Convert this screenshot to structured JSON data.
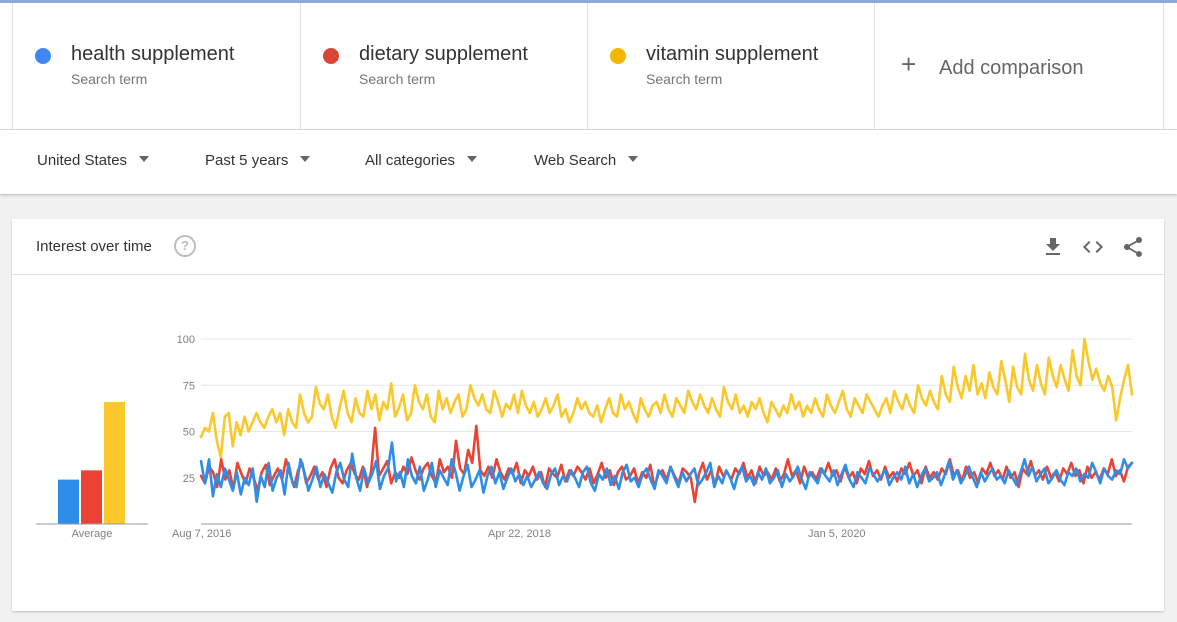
{
  "terms": [
    {
      "name": "health supplement",
      "sub": "Search term",
      "color": "#4285f4"
    },
    {
      "name": "dietary supplement",
      "sub": "Search term",
      "color": "#db4437"
    },
    {
      "name": "vitamin supplement",
      "sub": "Search term",
      "color": "#f4b400"
    }
  ],
  "add_comparison": {
    "label": "Add comparison"
  },
  "filters": {
    "region": "United States",
    "time": "Past 5 years",
    "category": "All categories",
    "search_type": "Web Search"
  },
  "card": {
    "title": "Interest over time",
    "help_icon": "question-circle-icon"
  },
  "header_icons": [
    "download-icon",
    "embed-code-icon",
    "share-icon"
  ],
  "chart_data": {
    "type": "line",
    "x_tick_labels": [
      "Aug 7, 2016",
      "Apr 22, 2018",
      "Jan 5, 2020"
    ],
    "y_ticks": [
      25,
      50,
      75,
      100
    ],
    "ylim": [
      0,
      100
    ],
    "grid": true,
    "average_label": "Average",
    "averages": [
      {
        "name": "health supplement",
        "value": 24,
        "color": "#2d8ee8"
      },
      {
        "name": "dietary supplement",
        "value": 29,
        "color": "#ea4335"
      },
      {
        "name": "vitamin supplement",
        "value": 66,
        "color": "#fbc82b"
      }
    ],
    "series": [
      {
        "name": "health supplement",
        "color": "#2d8ee8",
        "values": [
          34,
          22,
          35,
          15,
          27,
          20,
          30,
          24,
          18,
          28,
          16,
          25,
          21,
          30,
          12,
          26,
          20,
          33,
          18,
          25,
          29,
          16,
          33,
          22,
          20,
          35,
          28,
          18,
          24,
          31,
          20,
          27,
          22,
          17,
          28,
          33,
          24,
          20,
          38,
          25,
          18,
          30,
          22,
          27,
          34,
          19,
          26,
          30,
          44,
          23,
          28,
          20,
          35,
          26,
          22,
          31,
          18,
          24,
          33,
          20,
          29,
          25,
          21,
          35,
          28,
          18,
          26,
          32,
          20,
          24,
          29,
          17,
          26,
          31,
          22,
          28,
          19,
          25,
          30,
          23,
          27,
          21,
          26,
          20,
          24,
          28,
          22,
          19,
          27,
          30,
          21,
          26,
          23,
          29,
          25,
          20,
          28,
          31,
          22,
          18,
          27,
          24,
          30,
          21,
          26,
          19,
          28,
          32,
          23,
          25,
          20,
          27,
          30,
          24,
          19,
          29,
          26,
          22,
          31,
          25,
          20,
          28,
          23,
          27,
          30,
          21,
          24,
          28,
          33,
          20,
          26,
          22,
          29,
          25,
          19,
          27,
          31,
          23,
          26,
          21,
          28,
          24,
          30,
          22,
          25,
          29,
          20,
          27,
          23,
          26,
          31,
          24,
          19,
          28,
          25,
          22,
          30,
          26,
          23,
          29,
          21,
          27,
          32,
          24,
          20,
          28,
          25,
          22,
          30,
          27,
          23,
          26,
          29,
          21,
          25,
          28,
          24,
          31,
          22,
          27,
          20,
          26,
          30,
          23,
          25,
          28,
          21,
          27,
          34,
          24,
          29,
          22,
          26,
          31,
          25,
          20,
          28,
          23,
          27,
          30,
          24,
          26,
          22,
          29,
          25,
          21,
          28,
          35,
          26,
          31,
          23,
          27,
          30,
          22,
          25,
          29,
          24,
          21,
          28,
          26,
          30,
          23,
          27,
          25,
          33,
          28,
          22,
          30,
          26,
          24,
          29,
          27,
          35,
          30,
          33
        ]
      },
      {
        "name": "dietary supplement",
        "color": "#ea4335",
        "values": [
          26,
          22,
          31,
          28,
          20,
          35,
          24,
          29,
          19,
          33,
          27,
          22,
          30,
          25,
          18,
          28,
          32,
          21,
          26,
          30,
          24,
          35,
          27,
          20,
          29,
          33,
          22,
          26,
          31,
          24,
          28,
          20,
          30,
          35,
          25,
          22,
          29,
          33,
          27,
          24,
          31,
          20,
          28,
          52,
          26,
          30,
          34,
          22,
          28,
          25,
          31,
          27,
          36,
          29,
          24,
          30,
          33,
          26,
          22,
          35,
          28,
          31,
          25,
          45,
          30,
          27,
          40,
          33,
          53,
          29,
          26,
          31,
          25,
          35,
          28,
          24,
          30,
          27,
          33,
          22,
          29,
          26,
          31,
          24,
          28,
          20,
          30,
          27,
          25,
          32,
          23,
          29,
          26,
          31,
          28,
          24,
          30,
          22,
          27,
          33,
          25,
          29,
          21,
          28,
          31,
          24,
          26,
          30,
          22,
          28,
          25,
          32,
          20,
          27,
          29,
          24,
          31,
          26,
          22,
          30,
          28,
          25,
          12,
          27,
          33,
          24,
          29,
          21,
          31,
          26,
          28,
          24,
          30,
          27,
          33,
          25,
          29,
          22,
          31,
          26,
          28,
          24,
          30,
          23,
          27,
          35,
          26,
          29,
          22,
          31,
          25,
          28,
          24,
          30,
          27,
          33,
          26,
          29,
          23,
          31,
          25,
          28,
          22,
          30,
          27,
          34,
          26,
          29,
          24,
          31,
          25,
          28,
          23,
          30,
          27,
          33,
          26,
          29,
          22,
          31,
          25,
          28,
          24,
          30,
          27,
          35,
          26,
          29,
          23,
          31,
          25,
          28,
          22,
          30,
          27,
          33,
          26,
          29,
          24,
          31,
          25,
          28,
          20,
          30,
          27,
          34,
          26,
          29,
          24,
          31,
          25,
          28,
          23,
          30,
          27,
          33,
          26,
          29,
          22,
          31,
          25,
          28,
          24,
          30,
          27,
          35,
          26,
          29,
          23,
          31,
          33
        ]
      },
      {
        "name": "vitamin supplement",
        "color": "#fbc82b",
        "values": [
          47,
          52,
          50,
          60,
          45,
          36,
          58,
          60,
          42,
          55,
          48,
          58,
          50,
          55,
          60,
          55,
          52,
          58,
          62,
          55,
          60,
          48,
          62,
          55,
          52,
          70,
          60,
          55,
          58,
          74,
          65,
          62,
          70,
          58,
          52,
          63,
          72,
          60,
          55,
          68,
          60,
          58,
          72,
          62,
          70,
          56,
          66,
          62,
          76,
          58,
          63,
          70,
          56,
          60,
          75,
          66,
          62,
          70,
          58,
          55,
          72,
          62,
          68,
          60,
          66,
          70,
          58,
          62,
          75,
          68,
          64,
          70,
          62,
          60,
          72,
          66,
          58,
          65,
          62,
          70,
          60,
          72,
          64,
          60,
          66,
          58,
          62,
          68,
          60,
          64,
          70,
          58,
          62,
          55,
          60,
          68,
          62,
          66,
          60,
          58,
          64,
          55,
          62,
          68,
          60,
          58,
          70,
          62,
          66,
          60,
          55,
          68,
          62,
          58,
          64,
          66,
          60,
          70,
          62,
          58,
          68,
          64,
          60,
          72,
          66,
          62,
          70,
          64,
          60,
          68,
          62,
          58,
          74,
          66,
          62,
          70,
          60,
          64,
          58,
          66,
          62,
          68,
          60,
          55,
          66,
          62,
          58,
          64,
          60,
          70,
          62,
          66,
          58,
          64,
          60,
          68,
          62,
          58,
          70,
          64,
          60,
          66,
          72,
          62,
          58,
          68,
          64,
          60,
          70,
          66,
          62,
          58,
          64,
          68,
          60,
          72,
          66,
          62,
          70,
          64,
          60,
          75,
          68,
          64,
          72,
          66,
          62,
          80,
          70,
          66,
          85,
          74,
          68,
          80,
          72,
          86,
          70,
          76,
          68,
          82,
          74,
          70,
          88,
          78,
          66,
          85,
          74,
          70,
          92,
          78,
          72,
          86,
          76,
          70,
          90,
          80,
          74,
          86,
          78,
          72,
          94,
          80,
          75,
          100,
          88,
          78,
          84,
          76,
          72,
          80,
          74,
          56,
          68,
          78,
          86,
          70
        ]
      }
    ]
  }
}
